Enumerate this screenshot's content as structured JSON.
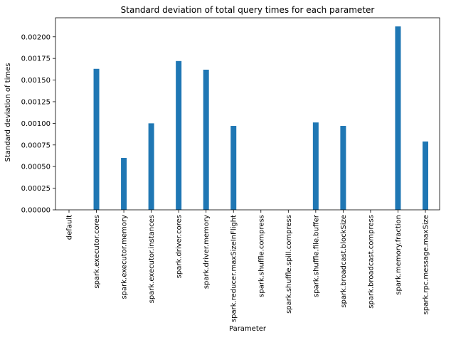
{
  "chart_data": {
    "type": "bar",
    "title": "Standard deviation of total query times for each parameter",
    "xlabel": "Parameter",
    "ylabel": "Standard deviation of times",
    "categories": [
      "default",
      "spark.executor.cores",
      "spark.executor.memory",
      "spark.executor.instances",
      "spark.driver.cores",
      "spark.driver.memory",
      "spark.reducer.maxSizeInFlight",
      "spark.shuffle.compress",
      "spark.shuffle.spill.compress",
      "spark.shuffle.file.buffer",
      "spark.broadcast.blockSize",
      "spark.broadcast.compress",
      "spark.memory.fraction",
      "spark.rpc.message.maxSize"
    ],
    "values": [
      0.0,
      0.00163,
      0.0006,
      0.001,
      0.00172,
      0.00162,
      0.00097,
      0.0,
      0.0,
      0.00101,
      0.00097,
      0.0,
      0.00212,
      0.00079
    ],
    "ylim": [
      0,
      0.00222
    ],
    "yticks": [
      0.0,
      0.00025,
      0.0005,
      0.00075,
      0.001,
      0.00125,
      0.0015,
      0.00175,
      0.002
    ],
    "ytick_labels": [
      "0.00000",
      "0.00025",
      "0.00050",
      "0.00075",
      "0.00100",
      "0.00125",
      "0.00150",
      "0.00175",
      "0.00200"
    ],
    "bar_color": "#1f77b4",
    "grid": false,
    "legend": "none"
  }
}
